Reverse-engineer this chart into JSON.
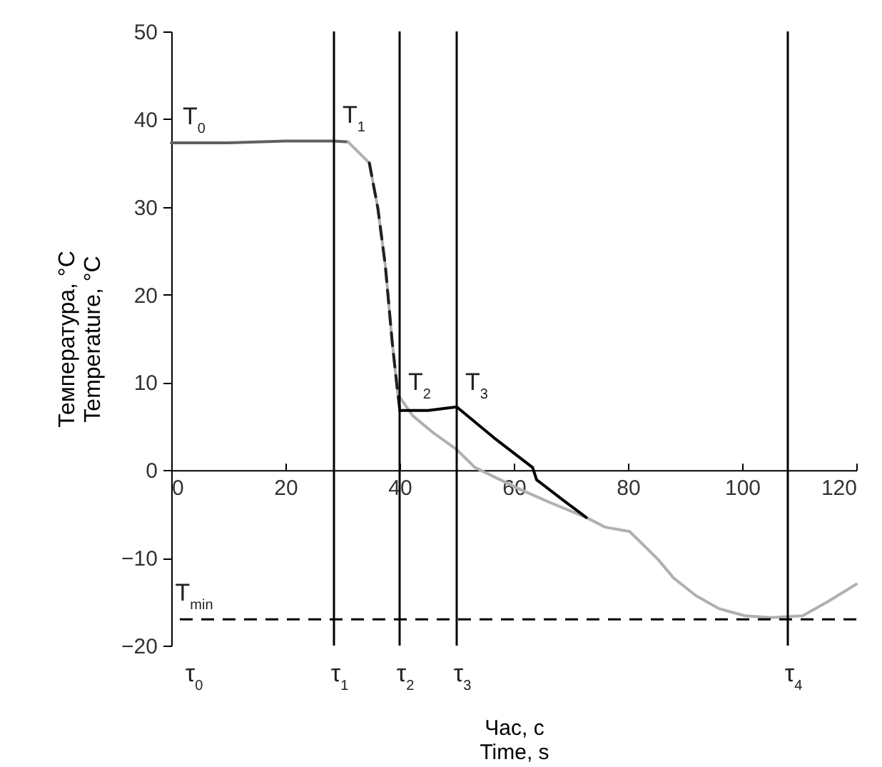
{
  "chart_data": {
    "type": "line",
    "xlabel": "Час, с\nTime, s",
    "ylabel": "Температура, °C\nTemperature, °C",
    "xlim": [
      0,
      120
    ],
    "xticks": [
      0,
      20,
      40,
      60,
      80,
      100,
      120
    ],
    "ylim": [
      -20,
      50
    ],
    "yticks": [
      -20,
      -10,
      0,
      10,
      20,
      30,
      40,
      50
    ],
    "grid": false,
    "marker": "none",
    "series": [
      {
        "color": "#606060",
        "line_style": "solid",
        "x": [
          0,
          10,
          20,
          28.5,
          31
        ],
        "values": [
          37.3,
          37.3,
          37.5,
          37.5,
          37.4
        ]
      },
      {
        "color": "#b0b0b0",
        "line_style": "solid",
        "x": [
          31,
          34.7,
          36.2,
          37.5,
          38.7,
          39.7,
          42.3,
          46,
          49.9,
          53.2,
          57,
          60.8,
          66,
          72.7,
          76,
          80.3,
          85.3,
          88,
          91.9,
          96,
          100.5,
          105,
          110.6,
          115,
          120
        ],
        "values": [
          37.4,
          35,
          29.8,
          23.3,
          14.6,
          8.6,
          6.2,
          4.2,
          2.4,
          0.3,
          -0.9,
          -2.1,
          -3.6,
          -5.4,
          -6.5,
          -7,
          -10.2,
          -12.3,
          -14.3,
          -15.8,
          -16.6,
          -16.8,
          -16.6,
          -15,
          -13
        ]
      },
      {
        "color": "#202020",
        "line_style": "dashed",
        "x": [
          34.7,
          36.2,
          37.5,
          38.7,
          39.7,
          40
        ],
        "values": [
          35,
          29.8,
          23.3,
          14.6,
          8.6,
          7
        ]
      },
      {
        "color": "#000000",
        "line_style": "solid",
        "x": [
          40,
          45,
          50,
          56.5,
          63.3,
          64,
          68.4,
          72.7
        ],
        "values": [
          6.8,
          6.8,
          7.2,
          3.7,
          0.3,
          -1.1,
          -3.3,
          -5.4
        ]
      }
    ],
    "ref_lines": [
      {
        "axis": "x",
        "value": 28.5,
        "label": "τ$_{1}$",
        "color": "#000000",
        "line_style": "solid"
      },
      {
        "axis": "x",
        "value": 40,
        "label": "τ$_{2}$",
        "color": "#000000",
        "line_style": "solid"
      },
      {
        "axis": "x",
        "value": 50,
        "label": "τ$_{3}$",
        "color": "#000000",
        "line_style": "solid"
      },
      {
        "axis": "x",
        "value": 108,
        "label": "τ$_{4}$",
        "color": "#000000",
        "line_style": "solid"
      },
      {
        "axis": "y",
        "value": -17,
        "label": "T$_{min}$",
        "color": "#000000",
        "line_style": "dashed"
      }
    ],
    "annotations": [
      "τ$_{0}$",
      {
        "text": "T$_{0}$",
        "x": 0,
        "y": 37.3
      },
      {
        "text": "T$_{1}$",
        "x": 28.5,
        "y": 37.5
      },
      {
        "text": "T$_{2}$",
        "x": 40,
        "y": 7
      },
      {
        "text": "T$_{3}$",
        "x": 50,
        "y": 7
      }
    ]
  }
}
